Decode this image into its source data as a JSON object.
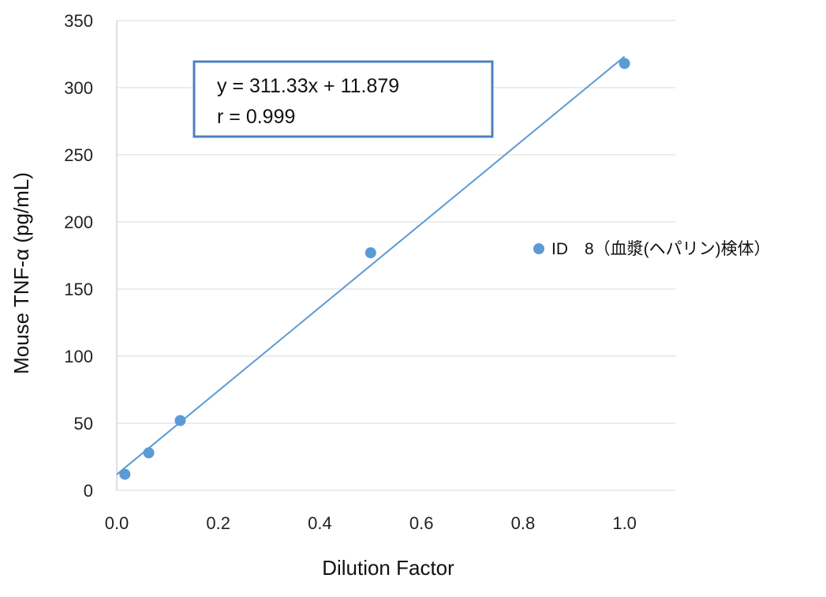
{
  "chart_data": {
    "type": "scatter",
    "title": "",
    "xlabel": "Dilution Factor",
    "ylabel": "Mouse TNF-α (pg/mL)",
    "xlim": [
      0.0,
      1.1
    ],
    "ylim": [
      0,
      350
    ],
    "x_ticks": [
      "0.0",
      "0.2",
      "0.4",
      "0.6",
      "0.8",
      "1.0"
    ],
    "y_ticks": [
      "0",
      "50",
      "100",
      "150",
      "200",
      "250",
      "300",
      "350"
    ],
    "grid": "horizontal",
    "legend_position": "right",
    "series": [
      {
        "name": "ID　8（血漿(ヘパリン)検体）",
        "color": "#5B9BD5",
        "x": [
          0.016,
          0.063,
          0.125,
          0.5,
          1.0
        ],
        "y": [
          12,
          28,
          52,
          177,
          318
        ]
      }
    ],
    "trendline": {
      "slope": 311.33,
      "intercept": 11.879,
      "x_range": [
        0.0,
        1.0
      ],
      "color": "#5B9BD5"
    },
    "annotation": {
      "line1": "y = 311.33x + 11.879",
      "line2": "r = 0.999",
      "border_color": "#4F81BD"
    }
  }
}
